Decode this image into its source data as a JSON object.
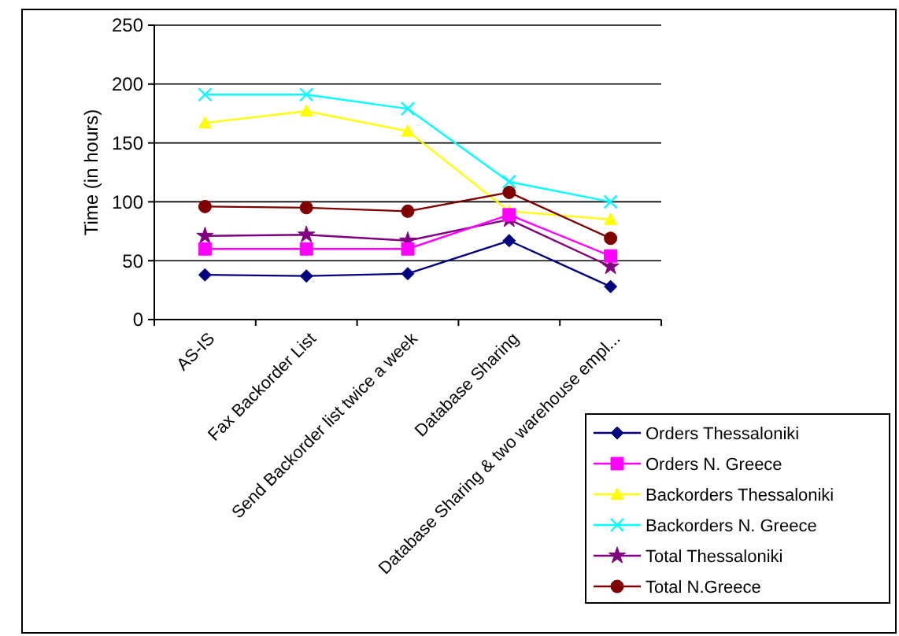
{
  "chart_data": {
    "type": "line",
    "ylabel": "Time (in hours)",
    "categories": [
      "AS-IS",
      "Fax Backorder List",
      "Send Backorder list twice a week",
      "Database Sharing",
      "Database Sharing & two warehouse empl..."
    ],
    "series": [
      {
        "name": "Orders Thessaloniki",
        "color": "#000080",
        "marker": "diamond",
        "values": [
          38,
          37,
          39,
          67,
          28
        ]
      },
      {
        "name": "Orders N. Greece",
        "color": "#ff00ff",
        "marker": "square",
        "values": [
          60,
          60,
          60,
          89,
          54
        ]
      },
      {
        "name": "Backorders Thessaloniki",
        "color": "#ffff00",
        "marker": "triangle",
        "values": [
          167,
          177,
          160,
          92,
          85
        ]
      },
      {
        "name": "Backorders N. Greece",
        "color": "#00ffff",
        "marker": "cross",
        "values": [
          191,
          191,
          179,
          117,
          100
        ]
      },
      {
        "name": "Total Thessaloniki",
        "color": "#800080",
        "marker": "star",
        "values": [
          71,
          72,
          67,
          85,
          45
        ]
      },
      {
        "name": "Total N.Greece",
        "color": "#800000",
        "marker": "circle",
        "values": [
          96,
          95,
          92,
          108,
          69
        ]
      }
    ],
    "ylim": [
      0,
      250
    ],
    "yticks": [
      0,
      50,
      100,
      150,
      200,
      250
    ],
    "grid": "y",
    "legend": "bottom right"
  }
}
